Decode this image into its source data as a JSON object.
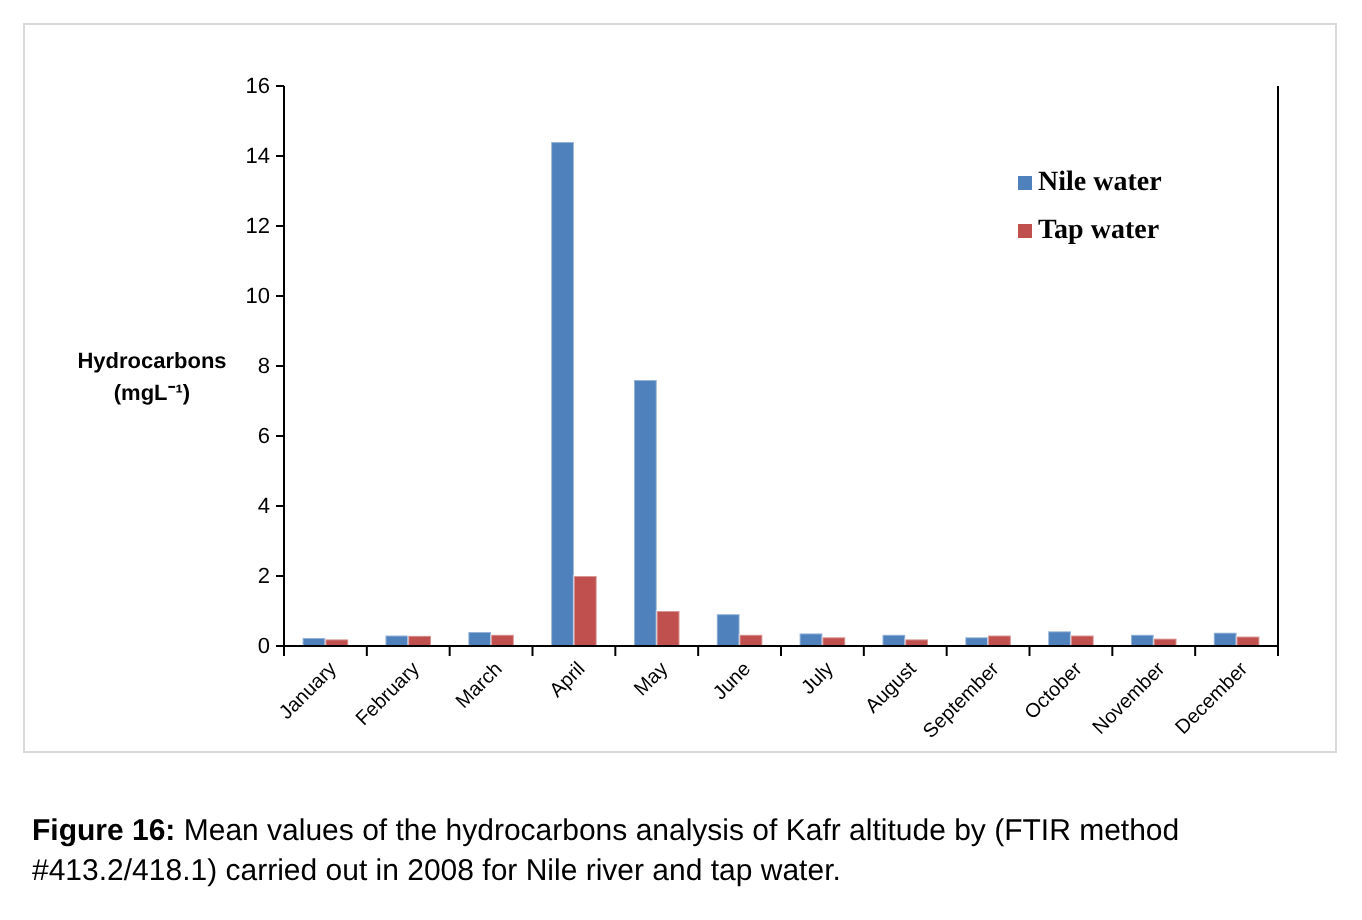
{
  "chart_data": {
    "type": "bar",
    "categories": [
      "January",
      "February",
      "March",
      "April",
      "May",
      "June",
      "July",
      "August",
      "September",
      "October",
      "November",
      "December"
    ],
    "series": [
      {
        "name": "Nile water",
        "color": "#4f81bd",
        "values": [
          0.23,
          0.3,
          0.4,
          14.4,
          7.6,
          0.91,
          0.36,
          0.32,
          0.25,
          0.42,
          0.32,
          0.38
        ]
      },
      {
        "name": "Tap water",
        "color": "#c0504d",
        "values": [
          0.19,
          0.29,
          0.32,
          2.0,
          1.0,
          0.32,
          0.25,
          0.19,
          0.3,
          0.3,
          0.21,
          0.27
        ]
      }
    ],
    "ylabel": "Hydrocarbons (mgL⁻¹)",
    "ylim": [
      0,
      16
    ],
    "yticks": [
      0,
      2,
      4,
      6,
      8,
      10,
      12,
      14,
      16
    ],
    "legend": "top right",
    "grid": false,
    "annotations": [
      "Figure 16: Mean values of the hydrocarbons analysis of Kafr altitude by (FTIR method #413.2/418.1) carried out in 2008 for Nile river and tap water."
    ]
  }
}
